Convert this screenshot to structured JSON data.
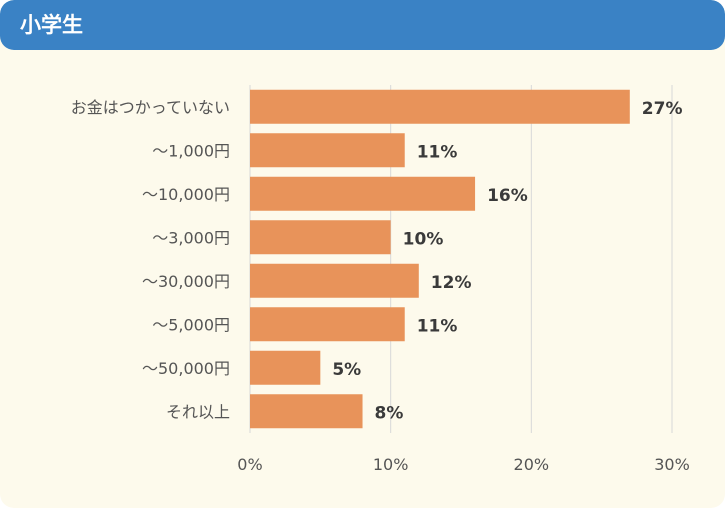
{
  "header": {
    "title": "小学生"
  },
  "chart_data": {
    "type": "bar",
    "orientation": "horizontal",
    "categories": [
      "お金はつかっていない",
      "～1,000円",
      "～10,000円",
      "～3,000円",
      "～30,000円",
      "～5,000円",
      "～50,000円",
      "それ以上"
    ],
    "values": [
      27,
      11,
      16,
      10,
      12,
      11,
      5,
      8
    ],
    "value_labels": [
      "27%",
      "11%",
      "16%",
      "10%",
      "12%",
      "11%",
      "5%",
      "8%"
    ],
    "xlim": [
      0,
      30
    ],
    "xticks": [
      0,
      10,
      20,
      30
    ],
    "xtick_labels": [
      "0%",
      "10%",
      "20%",
      "30%"
    ],
    "grid": true,
    "bar_color": "#e8935a",
    "grid_color": "#d8d8d8"
  }
}
